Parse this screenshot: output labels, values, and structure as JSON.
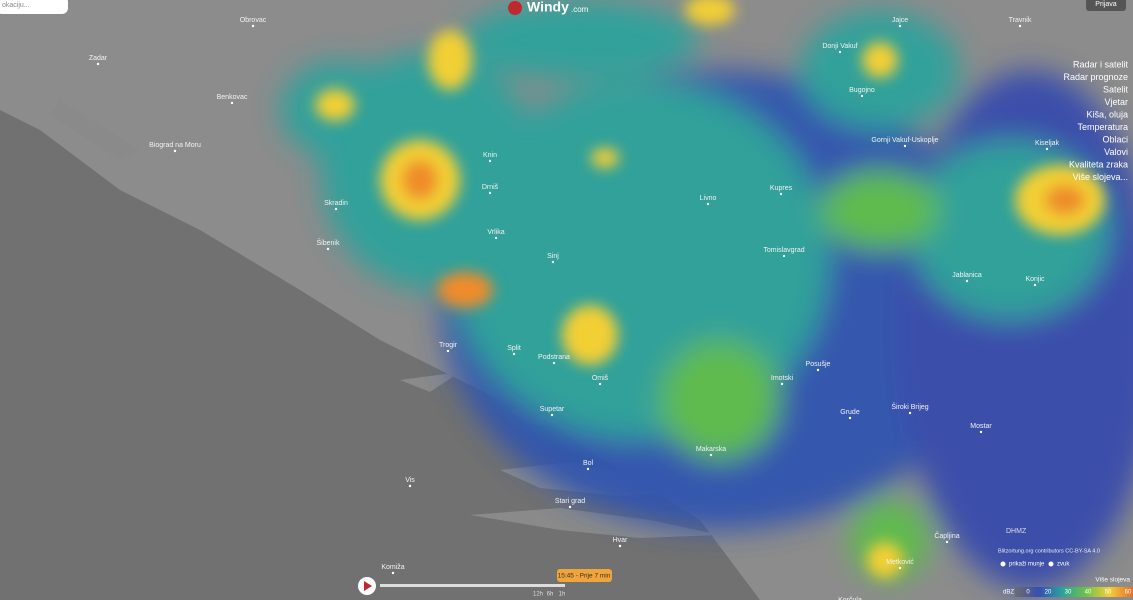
{
  "search": {
    "placeholder": "okaciju..."
  },
  "logo": {
    "name": "Windy",
    "suffix": ".com"
  },
  "login": "Prijava",
  "menu": [
    "Radar i satelit",
    "Radar prognoze",
    "Satelit",
    "Vjetar",
    "Kiša, oluja",
    "Temperatura",
    "Oblaci",
    "Valovi",
    "Kvaliteta zraka",
    "Više slojeva..."
  ],
  "map": {
    "labels": [
      "Obrovac",
      "Zadar",
      "Benkovac",
      "Biograd na Moru",
      "Skradin",
      "Šibenik",
      "Knin",
      "Drniš",
      "Vrlika",
      "Sinj",
      "Trogir",
      "Split",
      "Podstrana",
      "Omiš",
      "Supetar",
      "Bol",
      "Stari grad",
      "Makarska",
      "Imotski",
      "Livno",
      "Kupres",
      "Tomislavgrad",
      "Bugojno",
      "Gornji Vakuf-Uskoplje",
      "Kiseljak",
      "Jablanica",
      "Konjic",
      "Mostar",
      "Čapljina",
      "Metković",
      "Posušje",
      "Grude",
      "Široki Brijeg",
      "Vis",
      "Komiža",
      "Hvar",
      "Korčula",
      "Donji Vakuf",
      "Jajce",
      "Travnik"
    ]
  },
  "player": {
    "time": "15:45 - Prije 7 min",
    "steps": [
      "12h",
      "6h",
      "1h"
    ]
  },
  "provider": "DHMZ",
  "attribution": "Blitzortung.org contributors CC-BY-SA 4.0",
  "options": [
    "prikaži munje",
    "zvuk"
  ],
  "more_layers": "Više slojeva",
  "legend": {
    "unit": "dBZ",
    "values": [
      0,
      20,
      30,
      40,
      50,
      60
    ]
  }
}
